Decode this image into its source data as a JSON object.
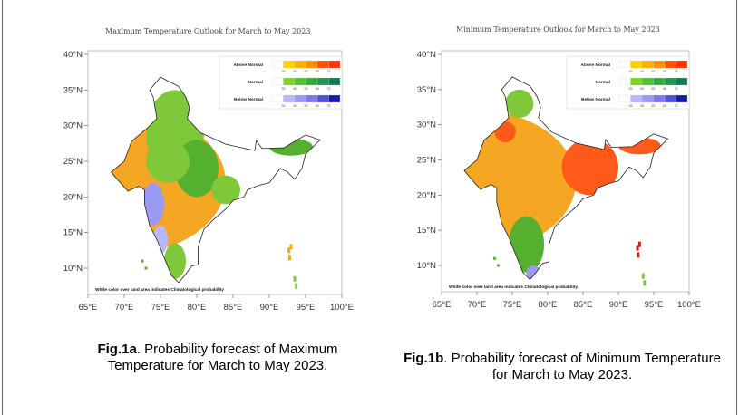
{
  "maps": [
    {
      "title": "Maximum Temperature Outlook for March to May 2023",
      "note": "White color over land area indicates Climatological probability",
      "legend": [
        {
          "label": "Above Normal",
          "colors": [
            "#ffffff",
            "#ffd000",
            "#ffb000",
            "#ff9000",
            "#ff5000",
            "#ff3000"
          ]
        },
        {
          "label": "Normal",
          "colors": [
            "#ffffff",
            "#7ed321",
            "#50c030",
            "#2faa3a",
            "#1e9650",
            "#0d7a5a"
          ]
        },
        {
          "label": "Below Normal",
          "colors": [
            "#ffffff",
            "#b8b8ff",
            "#9a9af5",
            "#7878ee",
            "#5050e0",
            "#1a1aaa"
          ]
        }
      ],
      "legend_ticks": [
        "35",
        "45",
        "55",
        "65",
        "75"
      ],
      "lon_labels": [
        "65°E",
        "70°E",
        "75°E",
        "80°E",
        "85°E",
        "90°E",
        "95°E",
        "100°E"
      ],
      "lat_labels": [
        "40°N",
        "35°N",
        "30°N",
        "25°N",
        "20°N",
        "15°N",
        "10°N"
      ],
      "caption_bold": "Fig.1a",
      "caption": ". Probability forecast of  Maximum Temperature for March to May 2023."
    },
    {
      "title": "Minimum Temperature Outlook for March to May 2023",
      "note": "White color over land area indicates Climatological probability",
      "legend": [
        {
          "label": "Above Normal",
          "colors": [
            "#ffffff",
            "#ffd000",
            "#ffb000",
            "#ff9000",
            "#ff5000",
            "#ff3000"
          ]
        },
        {
          "label": "Normal",
          "colors": [
            "#ffffff",
            "#7ed321",
            "#50c030",
            "#2faa3a",
            "#1e9650",
            "#0d7a5a"
          ]
        },
        {
          "label": "Below Normal",
          "colors": [
            "#ffffff",
            "#b8b8ff",
            "#9a9af5",
            "#7878ee",
            "#5050e0",
            "#1a1aaa"
          ]
        }
      ],
      "legend_ticks": [
        "35",
        "45",
        "55",
        "65",
        "75"
      ],
      "lon_labels": [
        "65°E",
        "70°E",
        "75°E",
        "80°E",
        "85°E",
        "90°E",
        "95°E",
        "100°E"
      ],
      "lat_labels": [
        "40°N",
        "35°N",
        "30°N",
        "25°N",
        "20°N",
        "15°N",
        "10°N"
      ],
      "caption_bold": "Fig.1b",
      "caption": ". Probability forecast of   Minimum Temperature for March to May 2023."
    }
  ]
}
